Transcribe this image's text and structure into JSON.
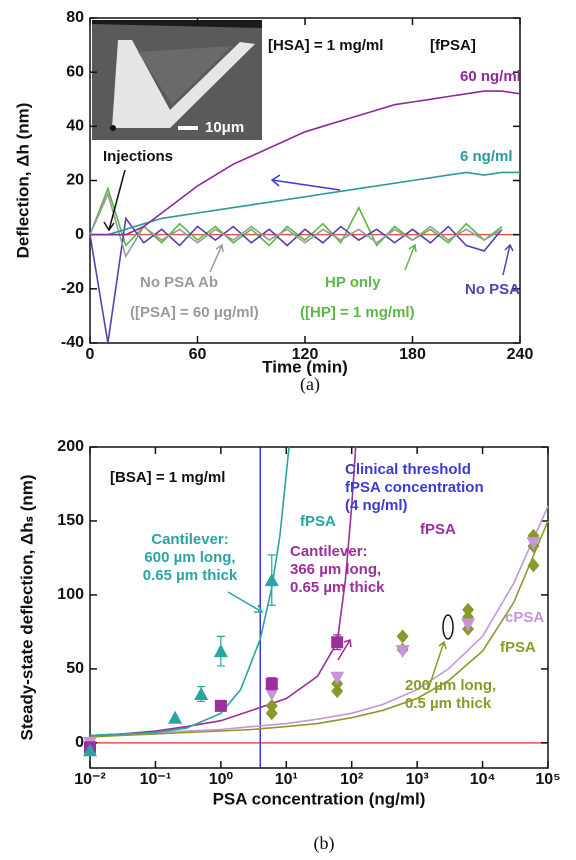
{
  "chart_data": [
    {
      "type": "line",
      "caption": "(a)",
      "x_label": "Time (min)",
      "y_label": "Deflection, Δh (nm)",
      "xlim": [
        0,
        240
      ],
      "xticks": [
        0,
        60,
        120,
        180,
        240
      ],
      "ylim": [
        -40,
        80
      ],
      "yticks": [
        -40,
        -20,
        0,
        20,
        40,
        60,
        80
      ],
      "hline": {
        "y": 0,
        "color": "#e0584a"
      },
      "series": [
        {
          "name": "HP only",
          "color": "#5cb845",
          "x": [
            0,
            10,
            20,
            30,
            40,
            50,
            60,
            70,
            80,
            90,
            100,
            110,
            120,
            130,
            140,
            150,
            160,
            170,
            180,
            190,
            200,
            210,
            220,
            230
          ],
          "values": [
            0,
            17,
            -4,
            3,
            -3,
            4,
            -2,
            3,
            -3,
            2,
            -4,
            3,
            -2,
            4,
            -3,
            10,
            -4,
            3,
            -2,
            2,
            -3,
            4,
            -2,
            3
          ]
        },
        {
          "name": "No PSA",
          "color": "#5a3fb0",
          "x": [
            0,
            10,
            20,
            30,
            40,
            50,
            60,
            70,
            80,
            90,
            100,
            110,
            120,
            130,
            140,
            150,
            160,
            170,
            180,
            190,
            200,
            210,
            220,
            230
          ],
          "values": [
            0,
            -40,
            6,
            -3,
            2,
            -4,
            3,
            -2,
            3,
            -3,
            2,
            -4,
            2,
            -3,
            3,
            -2,
            2,
            -3,
            2,
            -3,
            3,
            -4,
            -6,
            2
          ]
        },
        {
          "name": "No PSA Ab",
          "color": "#9a9a9a",
          "x": [
            0,
            10,
            20,
            30,
            40,
            50,
            60,
            70,
            80,
            90,
            100,
            110,
            120,
            130,
            140,
            150,
            160,
            170,
            180,
            190,
            200,
            210,
            220,
            230
          ],
          "values": [
            0,
            15,
            -8,
            3,
            -2,
            2,
            -3,
            2,
            -2,
            3,
            -2,
            2,
            -3,
            2,
            -2,
            2,
            -3,
            2,
            -2,
            3,
            -2,
            2,
            -2,
            2
          ]
        },
        {
          "name": "6 ng/ml",
          "color": "#2a9a9a",
          "x": [
            0,
            10,
            20,
            30,
            40,
            50,
            60,
            70,
            80,
            90,
            100,
            110,
            120,
            130,
            140,
            150,
            160,
            170,
            180,
            190,
            200,
            210,
            220,
            230,
            240
          ],
          "values": [
            0,
            0,
            2,
            4,
            6,
            7,
            8,
            9,
            10,
            11,
            12,
            13,
            14,
            15,
            16,
            17,
            18,
            19,
            20,
            21,
            22,
            23,
            22,
            23,
            23
          ]
        },
        {
          "name": "60 ng/ml",
          "color": "#8b2a9a",
          "x": [
            0,
            10,
            20,
            30,
            40,
            50,
            60,
            70,
            80,
            90,
            100,
            110,
            120,
            130,
            140,
            150,
            160,
            170,
            180,
            190,
            200,
            210,
            220,
            230,
            240
          ],
          "values": [
            0,
            0,
            0,
            3,
            8,
            13,
            18,
            22,
            26,
            29,
            32,
            35,
            38,
            40,
            42,
            44,
            46,
            48,
            49,
            50,
            51,
            52,
            53,
            53,
            52
          ]
        }
      ],
      "annotations": [
        {
          "lines": [
            "[HSA] = 1 mg/ml"
          ],
          "color": "#111111"
        },
        {
          "lines": [
            "[fPSA]"
          ],
          "color": "#111111"
        },
        {
          "lines": [
            "Injections"
          ],
          "color": "#111111"
        },
        {
          "lines": [
            "([PSA] = 60 μg/ml)"
          ],
          "color": "#9a9a9a"
        },
        {
          "lines": [
            "([HP] = 1 mg/ml)"
          ],
          "color": "#5cb845"
        },
        {
          "lines": [
            "10μm"
          ],
          "color": "#ffffff"
        }
      ]
    },
    {
      "type": "scatter",
      "caption": "(b)",
      "x_label": "PSA concentration (ng/ml)",
      "y_label": "Steady-state deflection, Δhₛ (nm)",
      "xlog": true,
      "xlim": [
        0.01,
        100000
      ],
      "xticks": [
        {
          "value": 0.01,
          "label": "10⁻²"
        },
        {
          "value": 0.1,
          "label": "10⁻¹"
        },
        {
          "value": 1,
          "label": "10⁰"
        },
        {
          "value": 10,
          "label": "10¹"
        },
        {
          "value": 100,
          "label": "10²"
        },
        {
          "value": 1000,
          "label": "10³"
        },
        {
          "value": 10000,
          "label": "10⁴"
        },
        {
          "value": 100000,
          "label": "10⁵"
        }
      ],
      "ylim": [
        -17,
        200
      ],
      "yticks": [
        0,
        50,
        100,
        150,
        200
      ],
      "hline": {
        "y": 0,
        "color": "#e0584a"
      },
      "vline": {
        "x": 4,
        "color": "#3b3bd0"
      },
      "curves": [
        {
          "color": "#c595d8",
          "x": [
            0.01,
            0.03,
            0.1,
            0.3,
            1,
            3,
            10,
            30,
            100,
            300,
            1000,
            3000,
            10000,
            30000,
            100000
          ],
          "values": [
            5,
            6,
            7,
            8,
            9,
            11,
            13,
            16,
            20,
            26,
            36,
            50,
            72,
            108,
            160
          ]
        },
        {
          "color": "#8a9a2a",
          "x": [
            0.01,
            0.03,
            0.1,
            0.3,
            1,
            3,
            10,
            30,
            100,
            300,
            1000,
            3000,
            10000,
            30000,
            100000
          ],
          "values": [
            4,
            5,
            6,
            7,
            8,
            9,
            11,
            13,
            17,
            22,
            30,
            42,
            62,
            95,
            150
          ]
        },
        {
          "color": "#9b2f9b",
          "x": [
            0.01,
            0.03,
            0.1,
            0.3,
            1,
            3,
            10,
            30,
            60,
            80,
            100,
            115
          ],
          "values": [
            5,
            6,
            8,
            11,
            15,
            22,
            30,
            45,
            68,
            110,
            160,
            200
          ]
        },
        {
          "color": "#2aa3a3",
          "x": [
            0.01,
            0.03,
            0.1,
            0.3,
            1,
            2,
            4,
            6,
            8,
            11
          ],
          "values": [
            5,
            6,
            7,
            10,
            20,
            36,
            70,
            105,
            140,
            200
          ]
        }
      ],
      "series": [
        {
          "marker": "diamond",
          "color": "#8a9a2a",
          "x": [
            6,
            6,
            60,
            60,
            600,
            600,
            6000,
            6000,
            6000,
            60000,
            60000,
            60000
          ],
          "values": [
            20,
            25,
            35,
            40,
            63,
            72,
            77,
            85,
            90,
            120,
            133,
            140
          ]
        },
        {
          "marker": "inv-triangle",
          "color": "#c595d8",
          "x": [
            0.01,
            6,
            60,
            600,
            6000,
            60000
          ],
          "values": [
            0,
            33,
            44,
            62,
            80,
            135
          ]
        },
        {
          "marker": "square",
          "color": "#9b2f9b",
          "x": [
            0.01,
            1,
            6,
            60
          ],
          "values": [
            -3,
            25,
            40,
            68
          ],
          "errors": [
            null,
            null,
            4,
            5
          ]
        },
        {
          "marker": "triangle",
          "color": "#2aa3a3",
          "x": [
            0.01,
            0.2,
            0.5,
            1,
            6
          ],
          "values": [
            -5,
            17,
            33,
            62,
            110
          ],
          "errors": [
            null,
            null,
            5,
            10,
            17
          ]
        }
      ],
      "annotations": [
        {
          "lines": [
            "[BSA] = 1 mg/ml"
          ],
          "color": "#111111"
        },
        {
          "lines": [
            "Clinical threshold",
            "fPSA concentration",
            "(4 ng/ml)"
          ],
          "color": "#3b3bd0"
        },
        {
          "lines": [
            "Cantilever:",
            "600 µm long,",
            "0.65 µm thick"
          ],
          "color": "#2aa3a3"
        },
        {
          "lines": [
            "Cantilever:",
            "366 µm long,",
            "0.65 µm thick"
          ],
          "color": "#9b2f9b"
        },
        {
          "lines": [
            "200 µm long,",
            "0.5 µm thick"
          ],
          "color": "#8a9a2a"
        },
        {
          "lines": [
            "fPSA"
          ],
          "color": "#2aa3a3"
        },
        {
          "lines": [
            "fPSA"
          ],
          "color": "#9b2f9b"
        },
        {
          "lines": [
            "cPSA"
          ],
          "color": "#c595d8"
        },
        {
          "lines": [
            "fPSA"
          ],
          "color": "#8a9a2a"
        }
      ]
    }
  ]
}
